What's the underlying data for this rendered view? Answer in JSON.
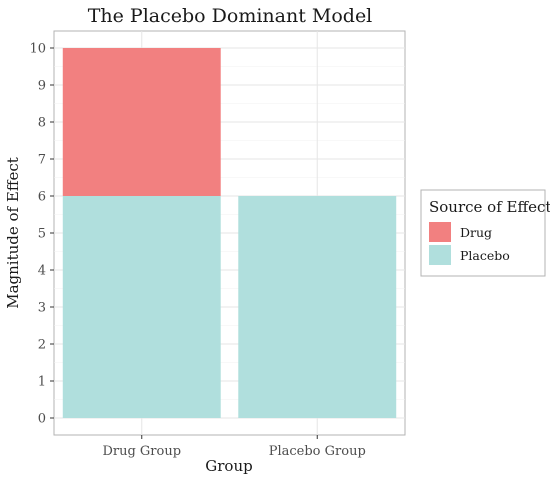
{
  "chart_data": {
    "type": "bar",
    "stacked": true,
    "title": "The Placebo Dominant Model",
    "xlabel": "Group",
    "ylabel": "Magnitude of Effect",
    "categories": [
      "Drug Group",
      "Placebo Group"
    ],
    "series": [
      {
        "name": "Placebo",
        "values": [
          6,
          6
        ],
        "color": "#b0dfdd"
      },
      {
        "name": "Drug",
        "values": [
          4,
          0
        ],
        "color": "#f28080"
      }
    ],
    "ylim": [
      0,
      10
    ],
    "yticks": [
      0,
      1,
      2,
      3,
      4,
      5,
      6,
      7,
      8,
      9,
      10
    ],
    "grid": true,
    "legend": {
      "title": "Source of Effect",
      "position": "right",
      "entries": [
        "Drug",
        "Placebo"
      ]
    }
  }
}
